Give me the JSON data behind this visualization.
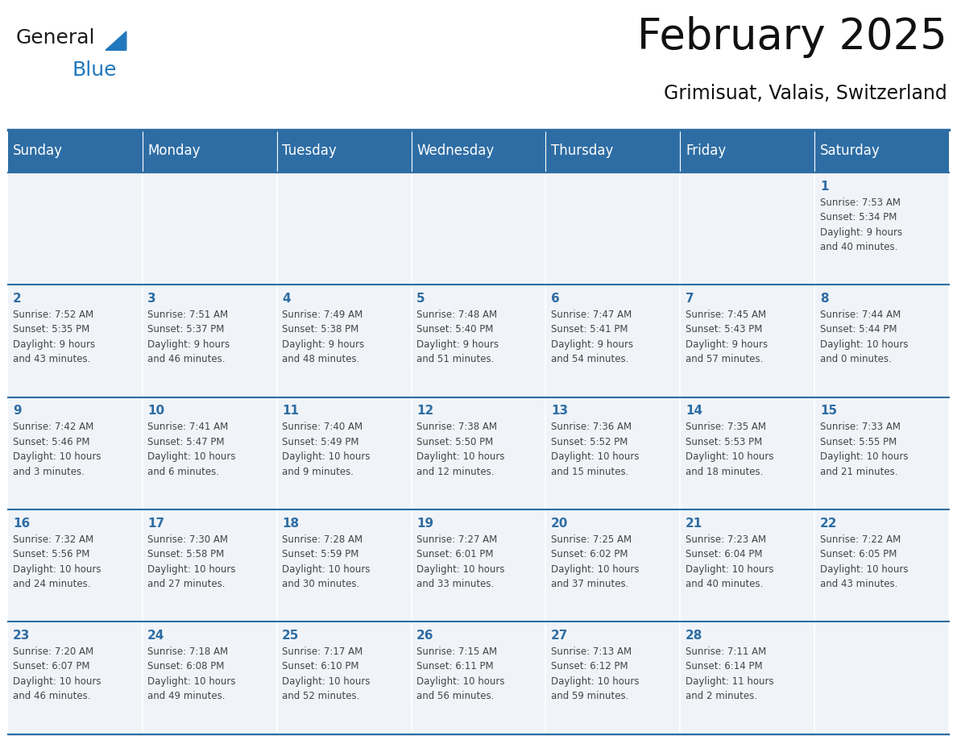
{
  "title": "February 2025",
  "subtitle": "Grimisuat, Valais, Switzerland",
  "header_bg": "#2E6DA4",
  "header_text": "#FFFFFF",
  "cell_bg_light": "#F0F4F8",
  "cell_bg_white": "#FFFFFF",
  "day_number_color": "#2E6DA4",
  "text_color": "#444444",
  "line_color": "#2E6DA4",
  "days_of_week": [
    "Sunday",
    "Monday",
    "Tuesday",
    "Wednesday",
    "Thursday",
    "Friday",
    "Saturday"
  ],
  "weeks": [
    [
      {
        "day": "",
        "info": ""
      },
      {
        "day": "",
        "info": ""
      },
      {
        "day": "",
        "info": ""
      },
      {
        "day": "",
        "info": ""
      },
      {
        "day": "",
        "info": ""
      },
      {
        "day": "",
        "info": ""
      },
      {
        "day": "1",
        "info": "Sunrise: 7:53 AM\nSunset: 5:34 PM\nDaylight: 9 hours\nand 40 minutes."
      }
    ],
    [
      {
        "day": "2",
        "info": "Sunrise: 7:52 AM\nSunset: 5:35 PM\nDaylight: 9 hours\nand 43 minutes."
      },
      {
        "day": "3",
        "info": "Sunrise: 7:51 AM\nSunset: 5:37 PM\nDaylight: 9 hours\nand 46 minutes."
      },
      {
        "day": "4",
        "info": "Sunrise: 7:49 AM\nSunset: 5:38 PM\nDaylight: 9 hours\nand 48 minutes."
      },
      {
        "day": "5",
        "info": "Sunrise: 7:48 AM\nSunset: 5:40 PM\nDaylight: 9 hours\nand 51 minutes."
      },
      {
        "day": "6",
        "info": "Sunrise: 7:47 AM\nSunset: 5:41 PM\nDaylight: 9 hours\nand 54 minutes."
      },
      {
        "day": "7",
        "info": "Sunrise: 7:45 AM\nSunset: 5:43 PM\nDaylight: 9 hours\nand 57 minutes."
      },
      {
        "day": "8",
        "info": "Sunrise: 7:44 AM\nSunset: 5:44 PM\nDaylight: 10 hours\nand 0 minutes."
      }
    ],
    [
      {
        "day": "9",
        "info": "Sunrise: 7:42 AM\nSunset: 5:46 PM\nDaylight: 10 hours\nand 3 minutes."
      },
      {
        "day": "10",
        "info": "Sunrise: 7:41 AM\nSunset: 5:47 PM\nDaylight: 10 hours\nand 6 minutes."
      },
      {
        "day": "11",
        "info": "Sunrise: 7:40 AM\nSunset: 5:49 PM\nDaylight: 10 hours\nand 9 minutes."
      },
      {
        "day": "12",
        "info": "Sunrise: 7:38 AM\nSunset: 5:50 PM\nDaylight: 10 hours\nand 12 minutes."
      },
      {
        "day": "13",
        "info": "Sunrise: 7:36 AM\nSunset: 5:52 PM\nDaylight: 10 hours\nand 15 minutes."
      },
      {
        "day": "14",
        "info": "Sunrise: 7:35 AM\nSunset: 5:53 PM\nDaylight: 10 hours\nand 18 minutes."
      },
      {
        "day": "15",
        "info": "Sunrise: 7:33 AM\nSunset: 5:55 PM\nDaylight: 10 hours\nand 21 minutes."
      }
    ],
    [
      {
        "day": "16",
        "info": "Sunrise: 7:32 AM\nSunset: 5:56 PM\nDaylight: 10 hours\nand 24 minutes."
      },
      {
        "day": "17",
        "info": "Sunrise: 7:30 AM\nSunset: 5:58 PM\nDaylight: 10 hours\nand 27 minutes."
      },
      {
        "day": "18",
        "info": "Sunrise: 7:28 AM\nSunset: 5:59 PM\nDaylight: 10 hours\nand 30 minutes."
      },
      {
        "day": "19",
        "info": "Sunrise: 7:27 AM\nSunset: 6:01 PM\nDaylight: 10 hours\nand 33 minutes."
      },
      {
        "day": "20",
        "info": "Sunrise: 7:25 AM\nSunset: 6:02 PM\nDaylight: 10 hours\nand 37 minutes."
      },
      {
        "day": "21",
        "info": "Sunrise: 7:23 AM\nSunset: 6:04 PM\nDaylight: 10 hours\nand 40 minutes."
      },
      {
        "day": "22",
        "info": "Sunrise: 7:22 AM\nSunset: 6:05 PM\nDaylight: 10 hours\nand 43 minutes."
      }
    ],
    [
      {
        "day": "23",
        "info": "Sunrise: 7:20 AM\nSunset: 6:07 PM\nDaylight: 10 hours\nand 46 minutes."
      },
      {
        "day": "24",
        "info": "Sunrise: 7:18 AM\nSunset: 6:08 PM\nDaylight: 10 hours\nand 49 minutes."
      },
      {
        "day": "25",
        "info": "Sunrise: 7:17 AM\nSunset: 6:10 PM\nDaylight: 10 hours\nand 52 minutes."
      },
      {
        "day": "26",
        "info": "Sunrise: 7:15 AM\nSunset: 6:11 PM\nDaylight: 10 hours\nand 56 minutes."
      },
      {
        "day": "27",
        "info": "Sunrise: 7:13 AM\nSunset: 6:12 PM\nDaylight: 10 hours\nand 59 minutes."
      },
      {
        "day": "28",
        "info": "Sunrise: 7:11 AM\nSunset: 6:14 PM\nDaylight: 11 hours\nand 2 minutes."
      },
      {
        "day": "",
        "info": ""
      }
    ]
  ],
  "logo_general_color": "#1a1a1a",
  "logo_blue_color": "#2278BD",
  "logo_triangle_color": "#2278BD",
  "title_fontsize": 38,
  "subtitle_fontsize": 17,
  "header_fontsize": 12,
  "day_num_fontsize": 11,
  "info_fontsize": 8.5
}
